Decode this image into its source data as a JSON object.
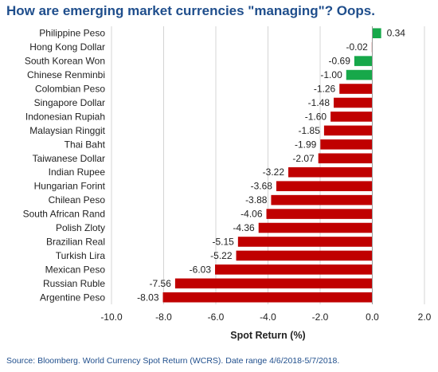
{
  "chart_data": {
    "type": "bar",
    "orientation": "horizontal",
    "title": "How are emerging market currencies \"managing\"? Oops.",
    "xlabel": "Spot Return (%)",
    "ylabel": "",
    "xlim": [
      -10.0,
      2.0
    ],
    "x_ticks": [
      "-10.0",
      "-8.0",
      "-6.0",
      "-4.0",
      "-2.0",
      "0.0",
      "2.0"
    ],
    "grid": true,
    "categories": [
      "Philippine Peso",
      "Hong Kong Dollar",
      "South Korean Won",
      "Chinese Renminbi",
      "Colombian Peso",
      "Singapore Dollar",
      "Indonesian Rupiah",
      "Malaysian Ringgit",
      "Thai Baht",
      "Taiwanese Dollar",
      "Indian Rupee",
      "Hungarian Forint",
      "Chilean Peso",
      "South African Rand",
      "Polish Zloty",
      "Brazilian Real",
      "Turkish Lira",
      "Mexican Peso",
      "Russian Ruble",
      "Argentine Peso"
    ],
    "values": [
      0.34,
      -0.02,
      -0.69,
      -1.0,
      -1.26,
      -1.48,
      -1.6,
      -1.85,
      -1.99,
      -2.07,
      -3.22,
      -3.68,
      -3.88,
      -4.06,
      -4.36,
      -5.15,
      -5.22,
      -6.03,
      -7.56,
      -8.03
    ],
    "value_labels": [
      "0.34",
      "-0.02",
      "-0.69",
      "-1.00",
      "-1.26",
      "-1.48",
      "-1.60",
      "-1.85",
      "-1.99",
      "-2.07",
      "-3.22",
      "-3.68",
      "-3.88",
      "-4.06",
      "-4.36",
      "-5.15",
      "-5.22",
      "-6.03",
      "-7.56",
      "-8.03"
    ],
    "bar_colors": [
      "#17a84a",
      "#c00000",
      "#17a84a",
      "#17a84a",
      "#c00000",
      "#c00000",
      "#c00000",
      "#c00000",
      "#c00000",
      "#c00000",
      "#c00000",
      "#c00000",
      "#c00000",
      "#c00000",
      "#c00000",
      "#c00000",
      "#c00000",
      "#c00000",
      "#c00000",
      "#c00000"
    ],
    "colors": {
      "positive": "#17a84a",
      "negative": "#c00000",
      "title": "#1f4e8c",
      "source": "#1f4e8c"
    }
  },
  "source": "Source: Bloomberg.  World Currency Spot Return (WCRS). Date range 4/6/2018-5/7/2018."
}
